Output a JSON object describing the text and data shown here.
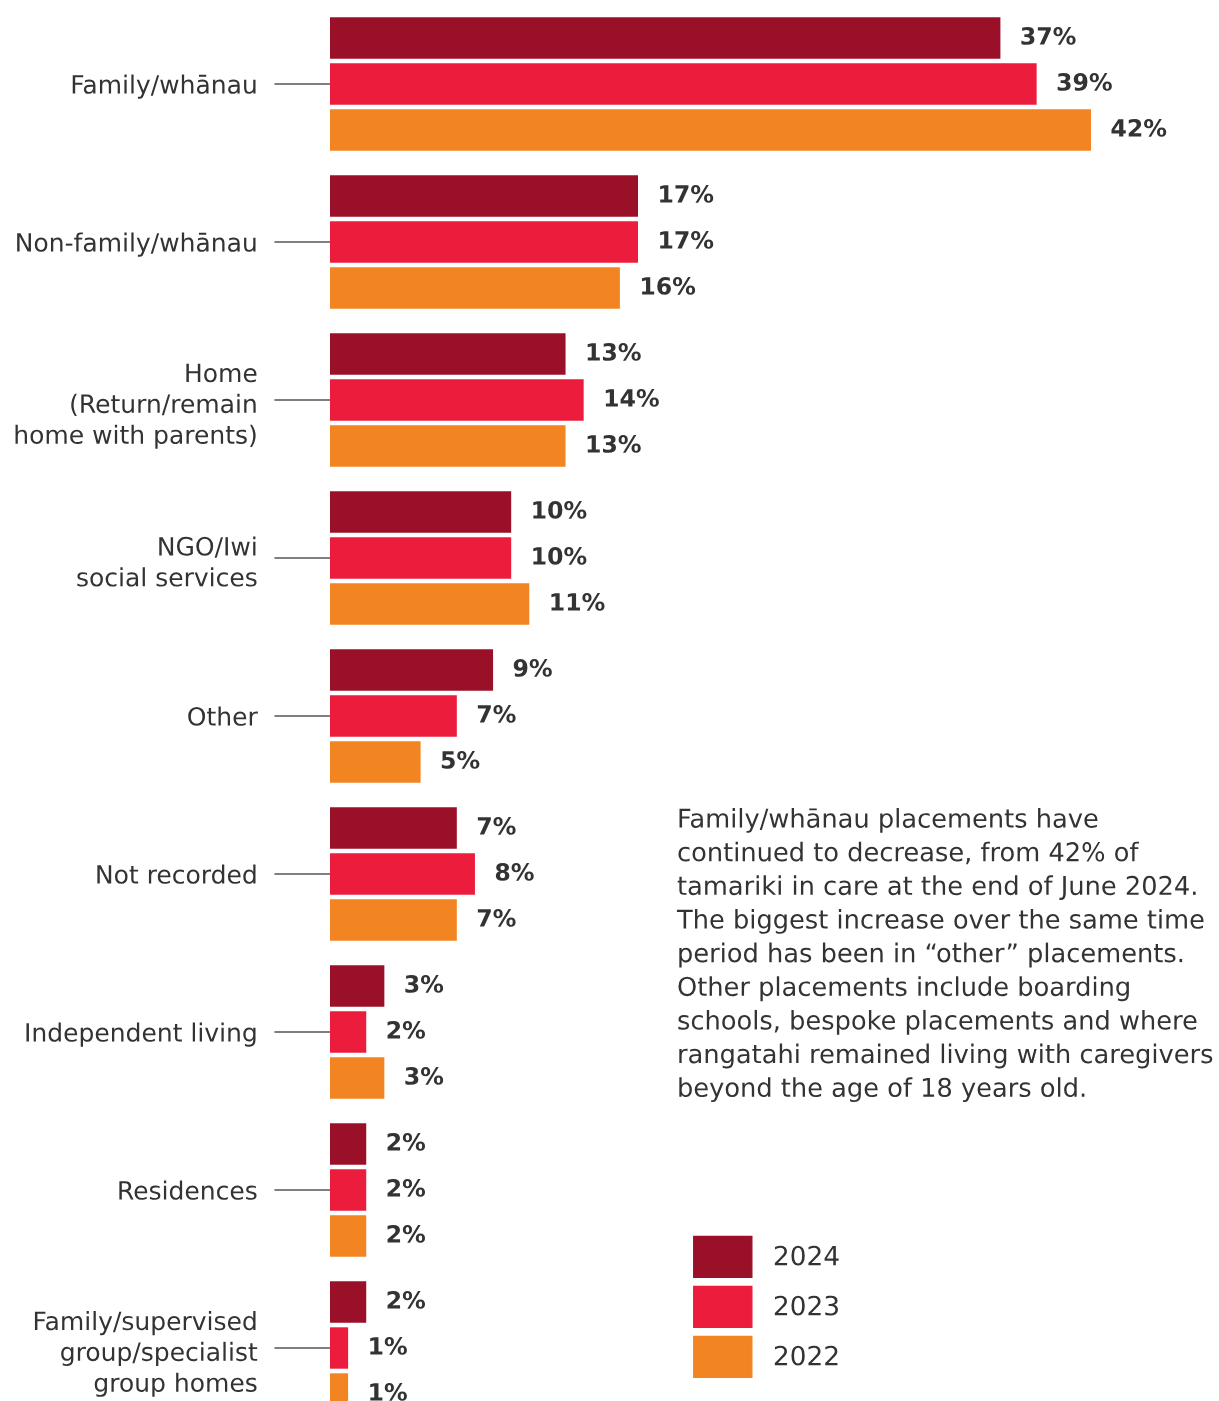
{
  "chart_data": {
    "type": "bar",
    "orientation": "horizontal",
    "categories": [
      "Family/whānau",
      "Non-family/whānau",
      "Home\n(Return/remain\nhome with parents)",
      "NGO/Iwi\nsocial services",
      "Other",
      "Not recorded",
      "Independent living",
      "Residences",
      "Family/supervised\ngroup/specialist\ngroup homes"
    ],
    "series": [
      {
        "name": "2024",
        "color": "#9b1029",
        "values": [
          37,
          17,
          13,
          10,
          9,
          7,
          3,
          2,
          2
        ],
        "value_labels": [
          "37%",
          "17%",
          "13%",
          "10%",
          "9%",
          "7%",
          "3%",
          "2%",
          "2%"
        ]
      },
      {
        "name": "2023",
        "color": "#ec1c3c",
        "values": [
          39,
          17,
          14,
          10,
          7,
          8,
          2,
          2,
          1
        ],
        "value_labels": [
          "39%",
          "17%",
          "14%",
          "10%",
          "7%",
          "8%",
          "2%",
          "2%",
          "1%"
        ]
      },
      {
        "name": "2022",
        "color": "#f28522",
        "values": [
          42,
          16,
          13,
          11,
          5,
          7,
          3,
          2,
          1
        ],
        "value_labels": [
          "42%",
          "16%",
          "13%",
          "11%",
          "5%",
          "7%",
          "3%",
          "2%",
          "1%"
        ]
      }
    ],
    "annotations": [
      "Family/whānau placements have continued to decrease, from 42% of tamariki in care at the end of June 2024. The biggest increase over the same time period has been in “other” placements. Other placements include boarding schools, bespoke placements and where rangatahi remained living with caregivers beyond the age of 18 years old."
    ],
    "legend": "bottom right",
    "grid": false,
    "tick_labels": "y"
  }
}
